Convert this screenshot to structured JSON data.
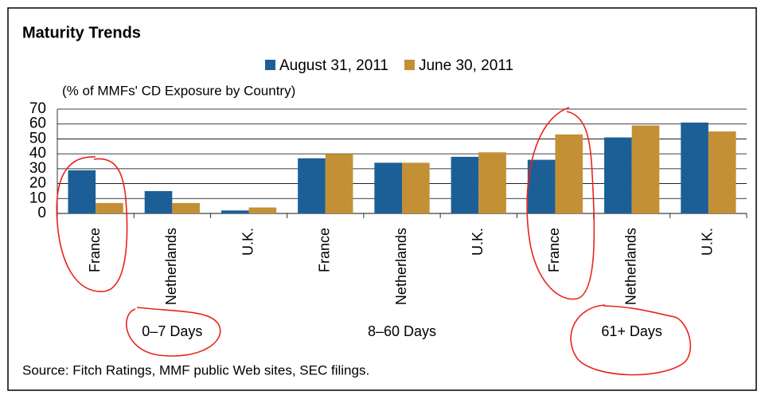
{
  "chart_data": {
    "type": "bar",
    "title": "Maturity Trends",
    "subtitle": "(% of MMFs' CD Exposure by Country)",
    "source": "Source: Fitch Ratings, MMF public Web sites, SEC filings.",
    "categories": [
      "France",
      "Netherlands",
      "U.K.",
      "France",
      "Netherlands",
      "U.K.",
      "France",
      "Netherlands",
      "U.K."
    ],
    "groups": [
      "0–7 Days",
      "8–60 Days",
      "61+ Days"
    ],
    "series": [
      {
        "name": "August 31, 2011",
        "color": "#1c5f97",
        "values": [
          29,
          15,
          2,
          37,
          34,
          38,
          36,
          51,
          61
        ]
      },
      {
        "name": "June 30, 2011",
        "color": "#c39035",
        "values": [
          7,
          7,
          4,
          40,
          34,
          41,
          53,
          59,
          55
        ]
      }
    ],
    "ylim": [
      0,
      70
    ],
    "yticks": [
      0,
      10,
      20,
      30,
      40,
      50,
      60,
      70
    ],
    "grid": true,
    "legend": "top"
  }
}
